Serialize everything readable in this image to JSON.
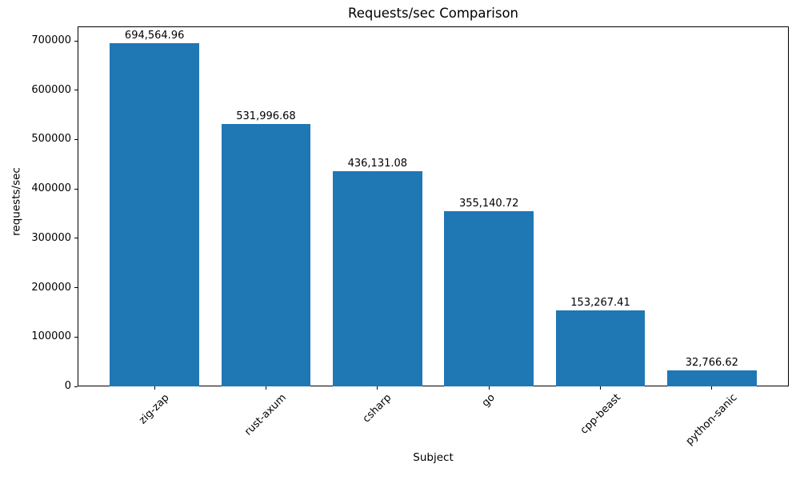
{
  "chart_data": {
    "type": "bar",
    "title": "Requests/sec Comparison",
    "xlabel": "Subject",
    "ylabel": "requests/sec",
    "categories": [
      "zig-zap",
      "rust-axum",
      "csharp",
      "go",
      "cpp-beast",
      "python-sanic"
    ],
    "values": [
      694564.96,
      531996.68,
      436131.08,
      355140.72,
      153267.41,
      32766.62
    ],
    "value_labels": [
      "694,564.96",
      "531,996.68",
      "436,131.08",
      "355,140.72",
      "153,267.41",
      "32,766.62"
    ],
    "yticks": [
      0,
      100000,
      200000,
      300000,
      400000,
      500000,
      600000,
      700000
    ],
    "ytick_labels": [
      "0",
      "100000",
      "200000",
      "300000",
      "400000",
      "500000",
      "600000",
      "700000"
    ],
    "ylim": [
      0,
      729300
    ],
    "bar_color": "#1f77b4",
    "grid": false,
    "legend": null,
    "tick_rotation_deg": 45
  }
}
